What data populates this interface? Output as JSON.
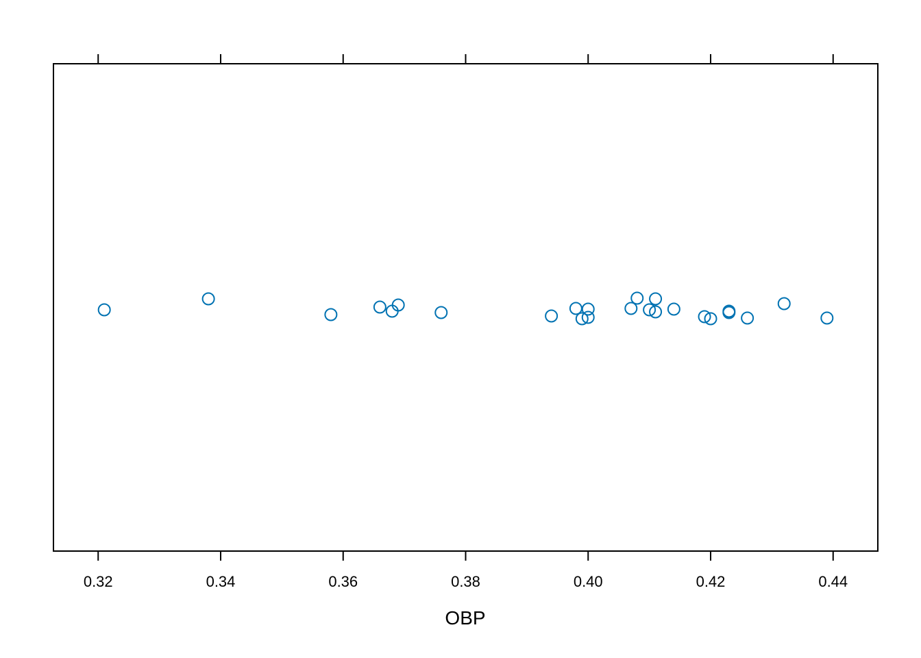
{
  "chart_data": {
    "type": "scatter",
    "title": "",
    "xlabel": "OBP",
    "ylabel": "",
    "xlim": [
      0.3127,
      0.4473
    ],
    "x_ticks": [
      "0.32",
      "0.34",
      "0.36",
      "0.38",
      "0.40",
      "0.42",
      "0.44"
    ],
    "x_tick_values": [
      0.32,
      0.34,
      0.36,
      0.38,
      0.4,
      0.42,
      0.44
    ],
    "grid": false,
    "jitter": "vertical jitter around a single strip (stripplot)",
    "marker_color": "#0072B2",
    "points": [
      {
        "x": 0.321,
        "jitter": 0.0
      },
      {
        "x": 0.338,
        "jitter": -0.16
      },
      {
        "x": 0.358,
        "jitter": 0.07
      },
      {
        "x": 0.366,
        "jitter": -0.04
      },
      {
        "x": 0.368,
        "jitter": 0.02
      },
      {
        "x": 0.369,
        "jitter": -0.07
      },
      {
        "x": 0.376,
        "jitter": 0.04
      },
      {
        "x": 0.394,
        "jitter": 0.09
      },
      {
        "x": 0.398,
        "jitter": -0.02
      },
      {
        "x": 0.399,
        "jitter": 0.13
      },
      {
        "x": 0.4,
        "jitter": -0.01
      },
      {
        "x": 0.4,
        "jitter": 0.11
      },
      {
        "x": 0.407,
        "jitter": -0.02
      },
      {
        "x": 0.408,
        "jitter": -0.17
      },
      {
        "x": 0.41,
        "jitter": 0.0
      },
      {
        "x": 0.411,
        "jitter": -0.16
      },
      {
        "x": 0.411,
        "jitter": 0.03
      },
      {
        "x": 0.414,
        "jitter": -0.01
      },
      {
        "x": 0.419,
        "jitter": 0.1
      },
      {
        "x": 0.42,
        "jitter": 0.13
      },
      {
        "x": 0.423,
        "jitter": 0.02
      },
      {
        "x": 0.423,
        "jitter": 0.04
      },
      {
        "x": 0.426,
        "jitter": 0.12
      },
      {
        "x": 0.432,
        "jitter": -0.09
      },
      {
        "x": 0.439,
        "jitter": 0.12
      }
    ]
  }
}
